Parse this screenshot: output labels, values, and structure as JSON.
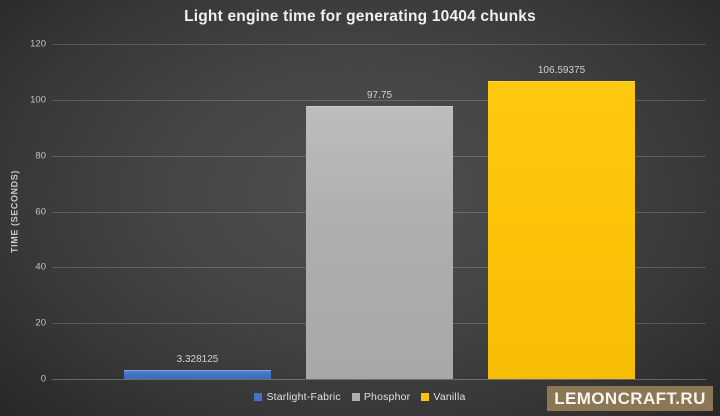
{
  "chart_data": {
    "type": "bar",
    "title": "Light engine time for generating 10404 chunks",
    "ylabel": "TIME (SECONDS)",
    "xlabel": "",
    "ylim": [
      0,
      120
    ],
    "yticks": [
      0,
      20,
      40,
      60,
      80,
      100,
      120
    ],
    "grid": true,
    "legend_position": "bottom",
    "categories": [
      "Starlight-Fabric",
      "Phosphor",
      "Vanilla"
    ],
    "values": [
      3.328125,
      97.75,
      106.59375
    ],
    "value_labels": [
      "3.328125",
      "97.75",
      "106.59375"
    ],
    "colors": [
      "#4472C4",
      "#AFAFAF",
      "#FEC206"
    ],
    "bar_gradients": [
      [
        "#5c89d8",
        "#4473c5",
        "#3f6cba"
      ],
      [
        "#bdbdbd",
        "#aeaeae",
        "#a8a8a8"
      ],
      [
        "#fdc90f",
        "#fcc307",
        "#f7bd04"
      ]
    ]
  },
  "watermark": {
    "text": "LEMONCRAFT.RU",
    "background": "#8B7756"
  }
}
